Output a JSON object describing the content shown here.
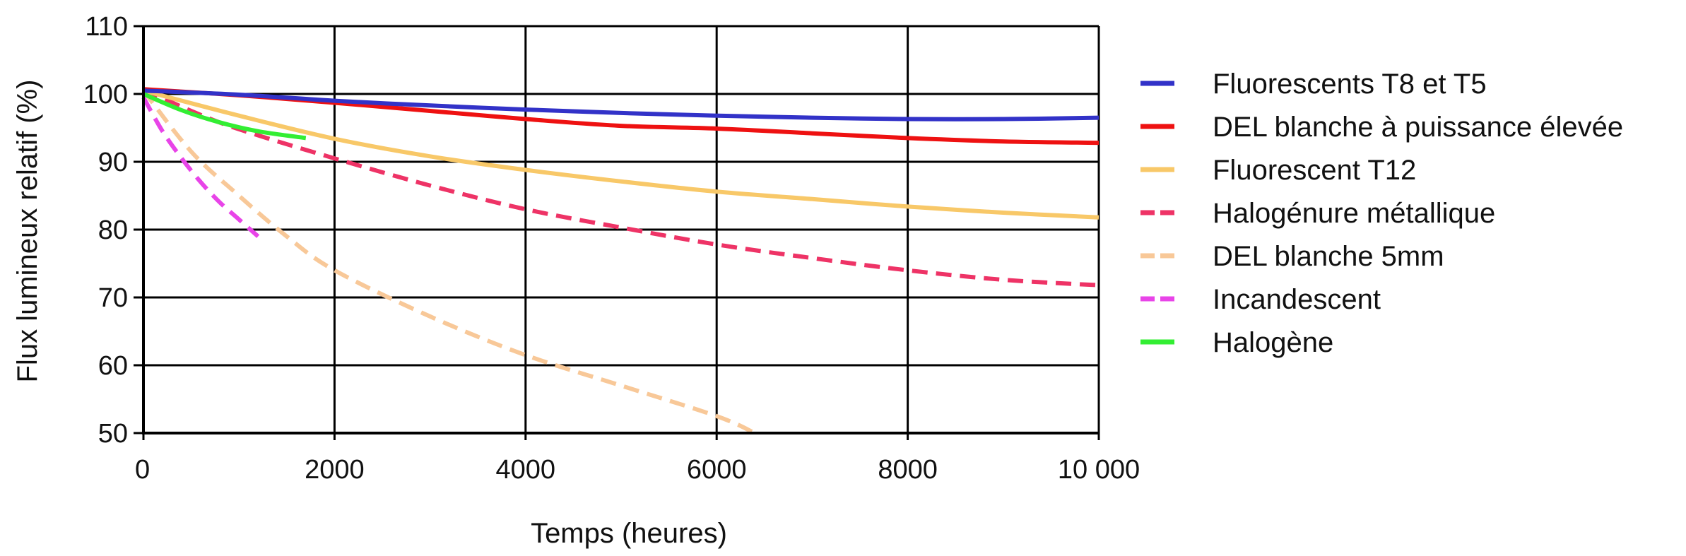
{
  "chart_data": {
    "type": "line",
    "xlabel": "Temps (heures)",
    "ylabel": "Flux lumineux relatif (%)",
    "xlim": [
      0,
      10000
    ],
    "ylim": [
      50,
      110
    ],
    "x_ticks": [
      0,
      2000,
      4000,
      6000,
      8000,
      10000
    ],
    "x_tick_labels": [
      "0",
      "2000",
      "4000",
      "6000",
      "8000",
      "10 000"
    ],
    "y_ticks": [
      50,
      60,
      70,
      80,
      90,
      100,
      110
    ],
    "y_tick_labels": [
      "50",
      "60",
      "70",
      "80",
      "90",
      "100",
      "110"
    ],
    "grid": true,
    "legend_position": "right",
    "series": [
      {
        "name": "Fluorescents T8 et T5",
        "color": "#3232c8",
        "dash": "solid",
        "x": [
          0,
          1000,
          2000,
          3000,
          4000,
          5000,
          6000,
          7000,
          8000,
          9000,
          10000
        ],
        "y": [
          100.5,
          99.9,
          99.0,
          98.3,
          97.7,
          97.2,
          96.8,
          96.5,
          96.3,
          96.3,
          96.5
        ]
      },
      {
        "name": "DEL blanche à puissance élevée",
        "color": "#ee1111",
        "dash": "solid",
        "x": [
          0,
          1000,
          2000,
          3000,
          4000,
          5000,
          6000,
          7000,
          8000,
          9000,
          10000
        ],
        "y": [
          100.7,
          99.8,
          98.7,
          97.5,
          96.3,
          95.3,
          94.9,
          94.2,
          93.5,
          93.0,
          92.8
        ]
      },
      {
        "name": "Fluorescent T12",
        "color": "#f8c868",
        "dash": "solid",
        "x": [
          0,
          1000,
          2000,
          3000,
          4000,
          5000,
          6000,
          7000,
          8000,
          9000,
          10000
        ],
        "y": [
          100.5,
          96.8,
          93.4,
          90.8,
          88.8,
          87.1,
          85.6,
          84.5,
          83.4,
          82.5,
          81.8
        ]
      },
      {
        "name": "Halogénure métallique",
        "color": "#ee3366",
        "dash": "dashed",
        "x": [
          0,
          500,
          1000,
          2000,
          3000,
          4000,
          5000,
          6000,
          7000,
          8000,
          9000,
          10000
        ],
        "y": [
          100.7,
          97.5,
          94.8,
          90.5,
          86.5,
          83.0,
          80.3,
          77.8,
          75.8,
          74.0,
          72.6,
          71.8
        ]
      },
      {
        "name": "DEL blanche 5mm",
        "color": "#f8c898",
        "dash": "dashed",
        "x": [
          0,
          500,
          1000,
          1500,
          2000,
          3000,
          4000,
          5000,
          6000,
          6400
        ],
        "y": [
          100.5,
          91.5,
          85.0,
          79.0,
          74.0,
          67.2,
          61.5,
          57.0,
          52.5,
          50.0
        ]
      },
      {
        "name": "Incandescent",
        "color": "#e844e8",
        "dash": "dashed",
        "x": [
          0,
          200,
          400,
          600,
          800,
          1000,
          1200
        ],
        "y": [
          99.5,
          94.5,
          90.5,
          87.0,
          84.0,
          81.5,
          79.0
        ]
      },
      {
        "name": "Halogène",
        "color": "#33ee33",
        "dash": "solid",
        "x": [
          0,
          400,
          800,
          1200,
          1700
        ],
        "y": [
          100.0,
          97.6,
          95.8,
          94.5,
          93.5
        ]
      }
    ]
  }
}
